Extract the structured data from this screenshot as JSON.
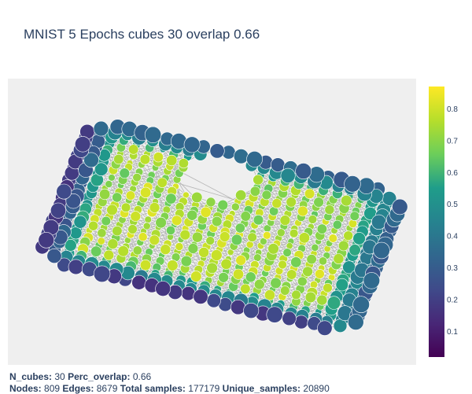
{
  "title": "MNIST 5 Epochs cubes 30 overlap 0.66",
  "footer": {
    "n_cubes_label": "N_cubes:",
    "n_cubes": "30",
    "perc_overlap_label": "Perc_overlap:",
    "perc_overlap": "0.66",
    "nodes_label": "Nodes:",
    "nodes": "809",
    "edges_label": "Edges:",
    "edges": "8679",
    "total_samples_label": "Total samples:",
    "total_samples": "177179",
    "unique_samples_label": "Unique_samples:",
    "unique_samples": "20890"
  },
  "colors": {
    "plot_background": "#efefef",
    "edge_color": "#b4b4b4",
    "node_outline": "#ffffff",
    "colorscale": "Viridis"
  },
  "chart_data": {
    "type": "scatter",
    "description_of_marks": "Kepler Mapper graph: nodes colored by value, sized by membership, connected by gray edges; rectangular grid-like cloud with a hole in the center",
    "grid": false,
    "axes_visible": false,
    "legend": "none",
    "colorbar": {
      "position": "right",
      "colorscale": "Viridis",
      "range": [
        0.02,
        0.87
      ],
      "ticks": [
        0.1,
        0.2,
        0.3,
        0.4,
        0.5,
        0.6,
        0.7,
        0.8
      ],
      "tick_labels": [
        "0.1",
        "0.2",
        "0.3",
        "0.4",
        "0.5",
        "0.6",
        "0.7",
        "0.8"
      ]
    }
  }
}
